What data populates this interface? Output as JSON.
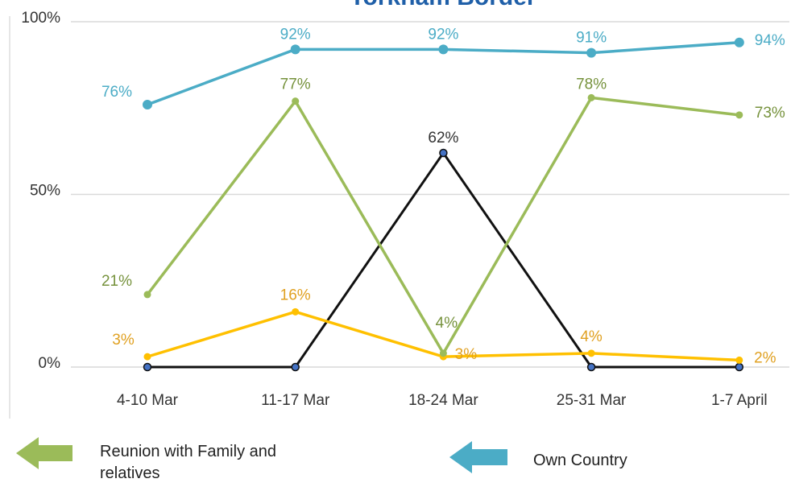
{
  "chart_data": {
    "type": "line",
    "title": "Torkham Border",
    "categories": [
      "4-10 Mar",
      "11-17 Mar",
      "18-24 Mar",
      "25-31 Mar",
      "1-7 April"
    ],
    "series": [
      {
        "name": "Own Country",
        "color": "#4bacc6",
        "label_color": "#4bacc6",
        "values": [
          76,
          92,
          92,
          91,
          94
        ],
        "value_labels": [
          "76%",
          "92%",
          "92%",
          "91%",
          "94%"
        ]
      },
      {
        "name": "Reunion with Family and relatives",
        "color": "#9bbb59",
        "label_color": "#76923c",
        "values": [
          21,
          77,
          4,
          78,
          73
        ],
        "value_labels": [
          "21%",
          "77%",
          "4%",
          "78%",
          "73%"
        ]
      },
      {
        "color": "#ffc000",
        "label_color": "#e0a020",
        "values": [
          3,
          16,
          3,
          4,
          2
        ],
        "value_labels": [
          "3%",
          "16%",
          "3%",
          "4%",
          "2%"
        ]
      },
      {
        "color": "#111111",
        "label_color": "#333333",
        "values": [
          0,
          0,
          62,
          0,
          0
        ],
        "value_labels": [
          null,
          null,
          "62%",
          null,
          null
        ]
      }
    ],
    "ylim": [
      0,
      100
    ],
    "yticks": [
      {
        "value": 0,
        "label": "0%"
      },
      {
        "value": 50,
        "label": "50%"
      },
      {
        "value": 100,
        "label": "100%"
      }
    ],
    "grid": true
  }
}
